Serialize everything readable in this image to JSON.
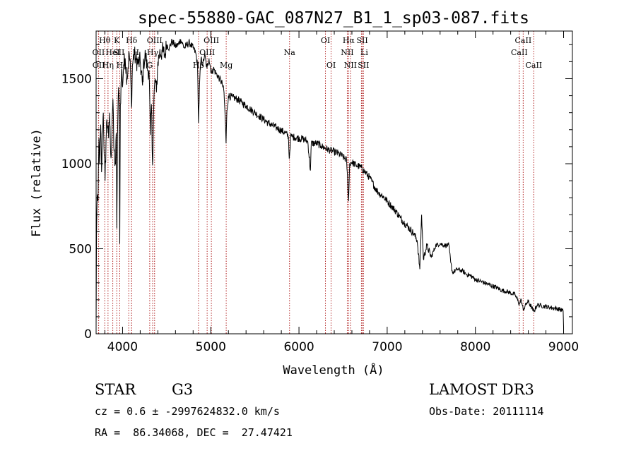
{
  "chart_data": {
    "type": "line",
    "title": "spec-55880-GAC_087N27_B1_1_sp03-087.fits",
    "xlabel": "Wavelength (Å)",
    "ylabel": "Flux (relative)",
    "xlim": [
      3700,
      9100
    ],
    "ylim": [
      0,
      1780
    ],
    "x_ticks": [
      4000,
      5000,
      6000,
      7000,
      8000,
      9000
    ],
    "x_tick_labels": [
      "4000",
      "5000",
      "6000",
      "7000",
      "8000",
      "9000"
    ],
    "y_ticks": [
      0,
      500,
      1000,
      1500
    ],
    "y_tick_labels": [
      "0",
      "500",
      "1000",
      "1500"
    ],
    "series": [
      {
        "name": "spectrum",
        "color": "#000000",
        "anchors": [
          [
            3700,
            40
          ],
          [
            3705,
            600
          ],
          [
            3712,
            820
          ],
          [
            3722,
            780
          ],
          [
            3732,
            1150
          ],
          [
            3742,
            1000
          ],
          [
            3752,
            1230
          ],
          [
            3762,
            950
          ],
          [
            3772,
            1180
          ],
          [
            3782,
            1300
          ],
          [
            3792,
            1050
          ],
          [
            3802,
            900
          ],
          [
            3812,
            1130
          ],
          [
            3822,
            1260
          ],
          [
            3832,
            1220
          ],
          [
            3842,
            1150
          ],
          [
            3852,
            1300
          ],
          [
            3862,
            1120
          ],
          [
            3872,
            1050
          ],
          [
            3882,
            1260
          ],
          [
            3891,
            1380
          ],
          [
            3900,
            1100
          ],
          [
            3910,
            1030
          ],
          [
            3920,
            1000
          ],
          [
            3928,
            1180
          ],
          [
            3935,
            620
          ],
          [
            3942,
            1150
          ],
          [
            3955,
            1450
          ],
          [
            3962,
            1310
          ],
          [
            3968,
            530
          ],
          [
            3975,
            1350
          ],
          [
            3990,
            1560
          ],
          [
            4000,
            1450
          ],
          [
            4012,
            1580
          ],
          [
            4030,
            1620
          ],
          [
            4050,
            1500
          ],
          [
            4075,
            1650
          ],
          [
            4090,
            1550
          ],
          [
            4101,
            1330
          ],
          [
            4112,
            1580
          ],
          [
            4130,
            1650
          ],
          [
            4150,
            1610
          ],
          [
            4180,
            1590
          ],
          [
            4200,
            1600
          ],
          [
            4226,
            1460
          ],
          [
            4240,
            1600
          ],
          [
            4260,
            1640
          ],
          [
            4280,
            1560
          ],
          [
            4300,
            1550
          ],
          [
            4315,
            1170
          ],
          [
            4327,
            1350
          ],
          [
            4340,
            990
          ],
          [
            4355,
            1380
          ],
          [
            4370,
            1500
          ],
          [
            4384,
            1420
          ],
          [
            4400,
            1600
          ],
          [
            4420,
            1650
          ],
          [
            4450,
            1660
          ],
          [
            4480,
            1640
          ],
          [
            4500,
            1700
          ],
          [
            4530,
            1680
          ],
          [
            4560,
            1720
          ],
          [
            4600,
            1690
          ],
          [
            4630,
            1700
          ],
          [
            4660,
            1730
          ],
          [
            4700,
            1680
          ],
          [
            4730,
            1700
          ],
          [
            4760,
            1710
          ],
          [
            4800,
            1680
          ],
          [
            4830,
            1650
          ],
          [
            4850,
            1580
          ],
          [
            4861,
            1240
          ],
          [
            4875,
            1500
          ],
          [
            4890,
            1620
          ],
          [
            4910,
            1580
          ],
          [
            4930,
            1640
          ],
          [
            4957,
            1560
          ],
          [
            4980,
            1620
          ],
          [
            5007,
            1530
          ],
          [
            5030,
            1560
          ],
          [
            5060,
            1530
          ],
          [
            5100,
            1500
          ],
          [
            5130,
            1470
          ],
          [
            5150,
            1420
          ],
          [
            5167,
            1230
          ],
          [
            5173,
            1120
          ],
          [
            5183,
            1310
          ],
          [
            5200,
            1400
          ],
          [
            5250,
            1390
          ],
          [
            5300,
            1380
          ],
          [
            5350,
            1360
          ],
          [
            5400,
            1340
          ],
          [
            5450,
            1320
          ],
          [
            5500,
            1300
          ],
          [
            5550,
            1280
          ],
          [
            5600,
            1260
          ],
          [
            5650,
            1240
          ],
          [
            5700,
            1225
          ],
          [
            5750,
            1210
          ],
          [
            5800,
            1195
          ],
          [
            5850,
            1180
          ],
          [
            5880,
            1160
          ],
          [
            5890,
            1030
          ],
          [
            5896,
            1070
          ],
          [
            5905,
            1160
          ],
          [
            5950,
            1155
          ],
          [
            6000,
            1150
          ],
          [
            6050,
            1145
          ],
          [
            6100,
            1130
          ],
          [
            6130,
            960
          ],
          [
            6140,
            1120
          ],
          [
            6200,
            1120
          ],
          [
            6250,
            1105
          ],
          [
            6300,
            1090
          ],
          [
            6350,
            1080
          ],
          [
            6400,
            1070
          ],
          [
            6450,
            1060
          ],
          [
            6500,
            1040
          ],
          [
            6540,
            1020
          ],
          [
            6563,
            780
          ],
          [
            6575,
            1000
          ],
          [
            6600,
            1010
          ],
          [
            6650,
            990
          ],
          [
            6700,
            980
          ],
          [
            6750,
            950
          ],
          [
            6800,
            920
          ],
          [
            6850,
            870
          ],
          [
            6900,
            830
          ],
          [
            6950,
            810
          ],
          [
            7000,
            780
          ],
          [
            7050,
            750
          ],
          [
            7100,
            720
          ],
          [
            7150,
            680
          ],
          [
            7200,
            650
          ],
          [
            7250,
            620
          ],
          [
            7300,
            590
          ],
          [
            7340,
            550
          ],
          [
            7370,
            380
          ],
          [
            7390,
            700
          ],
          [
            7410,
            440
          ],
          [
            7450,
            520
          ],
          [
            7500,
            450
          ],
          [
            7550,
            520
          ],
          [
            7600,
            530
          ],
          [
            7650,
            520
          ],
          [
            7700,
            520
          ],
          [
            7720,
            420
          ],
          [
            7740,
            360
          ],
          [
            7800,
            380
          ],
          [
            7850,
            370
          ],
          [
            7900,
            350
          ],
          [
            7950,
            340
          ],
          [
            8000,
            320
          ],
          [
            8050,
            310
          ],
          [
            8100,
            300
          ],
          [
            8150,
            290
          ],
          [
            8200,
            280
          ],
          [
            8250,
            270
          ],
          [
            8300,
            255
          ],
          [
            8350,
            250
          ],
          [
            8400,
            240
          ],
          [
            8450,
            230
          ],
          [
            8498,
            175
          ],
          [
            8520,
            200
          ],
          [
            8542,
            140
          ],
          [
            8580,
            180
          ],
          [
            8600,
            190
          ],
          [
            8662,
            130
          ],
          [
            8700,
            170
          ],
          [
            8750,
            165
          ],
          [
            8800,
            160
          ],
          [
            8850,
            155
          ],
          [
            8900,
            150
          ],
          [
            8950,
            145
          ],
          [
            8995,
            135
          ],
          [
            9000,
            40
          ]
        ]
      }
    ],
    "lines": [
      {
        "label": "Hθ",
        "wave": 3798,
        "row": 0,
        "dx": 0
      },
      {
        "label": "OII",
        "wave": 3727,
        "row": 1,
        "dx": 0
      },
      {
        "label": "OII",
        "wave": 3729,
        "row": 2,
        "dx": 0
      },
      {
        "label": "Hη",
        "wave": 3835,
        "row": 2,
        "dx": 0
      },
      {
        "label": "HeI",
        "wave": 3889,
        "row": 1,
        "dx": 0
      },
      {
        "label": "K",
        "wave": 3934,
        "row": 0,
        "dx": 0
      },
      {
        "label": "H",
        "wave": 3968,
        "row": 2,
        "dx": 0
      },
      {
        "label": "SII",
        "wave": 4070,
        "row": 1,
        "dx": -14
      },
      {
        "label": "Hδ",
        "wave": 4102,
        "row": 0,
        "dx": 0
      },
      {
        "label": "H",
        "wave": 4102,
        "row": 1,
        "dx": 6
      },
      {
        "label": "OIII",
        "wave": 4363,
        "row": 0,
        "dx": 0
      },
      {
        "label": "Hγ",
        "wave": 4341,
        "row": 1,
        "dx": 0
      },
      {
        "label": "G",
        "wave": 4308,
        "row": 2,
        "dx": 0
      },
      {
        "label": "Hβ",
        "wave": 4861,
        "row": 2,
        "dx": 0
      },
      {
        "label": "OIII",
        "wave": 5007,
        "row": 0,
        "dx": 0
      },
      {
        "label": "OIII",
        "wave": 4959,
        "row": 1,
        "dx": 0
      },
      {
        "label": "Mg",
        "wave": 5175,
        "row": 2,
        "dx": 0
      },
      {
        "label": "Na",
        "wave": 5893,
        "row": 1,
        "dx": 0
      },
      {
        "label": "OI",
        "wave": 6300,
        "row": 0,
        "dx": 0
      },
      {
        "label": "OI",
        "wave": 6364,
        "row": 2,
        "dx": 0
      },
      {
        "label": "Hα",
        "wave": 6563,
        "row": 0,
        "dx": 0
      },
      {
        "label": "NII",
        "wave": 6548,
        "row": 1,
        "dx": 0
      },
      {
        "label": "NII",
        "wave": 6584,
        "row": 2,
        "dx": 0
      },
      {
        "label": "SII",
        "wave": 6717,
        "row": 0,
        "dx": 0
      },
      {
        "label": "Li",
        "wave": 6708,
        "row": 1,
        "dx": 4
      },
      {
        "label": "SII",
        "wave": 6731,
        "row": 2,
        "dx": 0
      },
      {
        "label": "CaII",
        "wave": 8542,
        "row": 0,
        "dx": 0
      },
      {
        "label": "CaII",
        "wave": 8498,
        "row": 1,
        "dx": 0
      },
      {
        "label": "CaII",
        "wave": 8662,
        "row": 2,
        "dx": 0
      }
    ]
  },
  "info": {
    "object_class": "STAR",
    "subclass": "G3",
    "survey": "LAMOST DR3",
    "redshift": "cz = 0.6 ± -2997624832.0 km/s",
    "obs_date": "Obs-Date: 20111114",
    "coords": "RA =  86.34068, DEC =  27.47421"
  },
  "colors": {
    "line_marker": "#b02020",
    "spectrum": "#000000",
    "axis": "#000000"
  }
}
